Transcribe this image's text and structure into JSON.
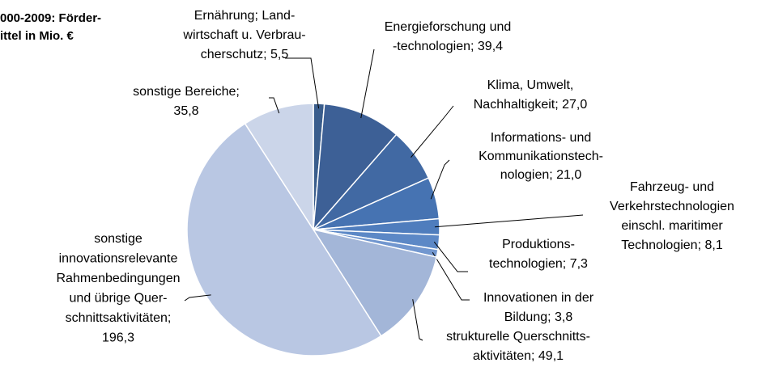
{
  "chart_data": {
    "type": "pie",
    "title": "000-2009: Förder-\nittel in Mio. €",
    "categories": [
      "Ernährung; Land-\nwirtschaft u. Verbrau-\ncherschutz;",
      "Energieforschung und\n-technologien;",
      "Klima, Umwelt,\nNachhaltigkeit;",
      "Informations- und\nKommunikationstech-\nnologien;",
      "Fahrzeug- und\nVerkehrstechnologien\neinschl. maritimer\nTechnologien;",
      "Produktions-\ntechnologien;",
      "Innovationen in der\nBildung;",
      "strukturelle Querschnitts-\naktivitäten;",
      "sonstige\ninnovationsrelevante\nRahmenbedingungen\nund übrige Quer-\nschnittsaktivitäten;",
      "sonstige Bereiche;"
    ],
    "values": [
      5.5,
      39.4,
      27.0,
      21.0,
      8.1,
      7.3,
      3.8,
      49.1,
      196.3,
      35.8
    ],
    "value_labels": [
      "5,5",
      "39,4",
      "27,0",
      "21,0",
      "8,1",
      "7,3",
      "3,8",
      "49,1",
      "196,3",
      "35,8"
    ],
    "colors": [
      "#3a5d8c",
      "#3d6096",
      "#4169a3",
      "#4673b2",
      "#4f7dbd",
      "#5c88c6",
      "#7297cf",
      "#a3b6d8",
      "#b9c7e3",
      "#cbd5e9"
    ]
  }
}
